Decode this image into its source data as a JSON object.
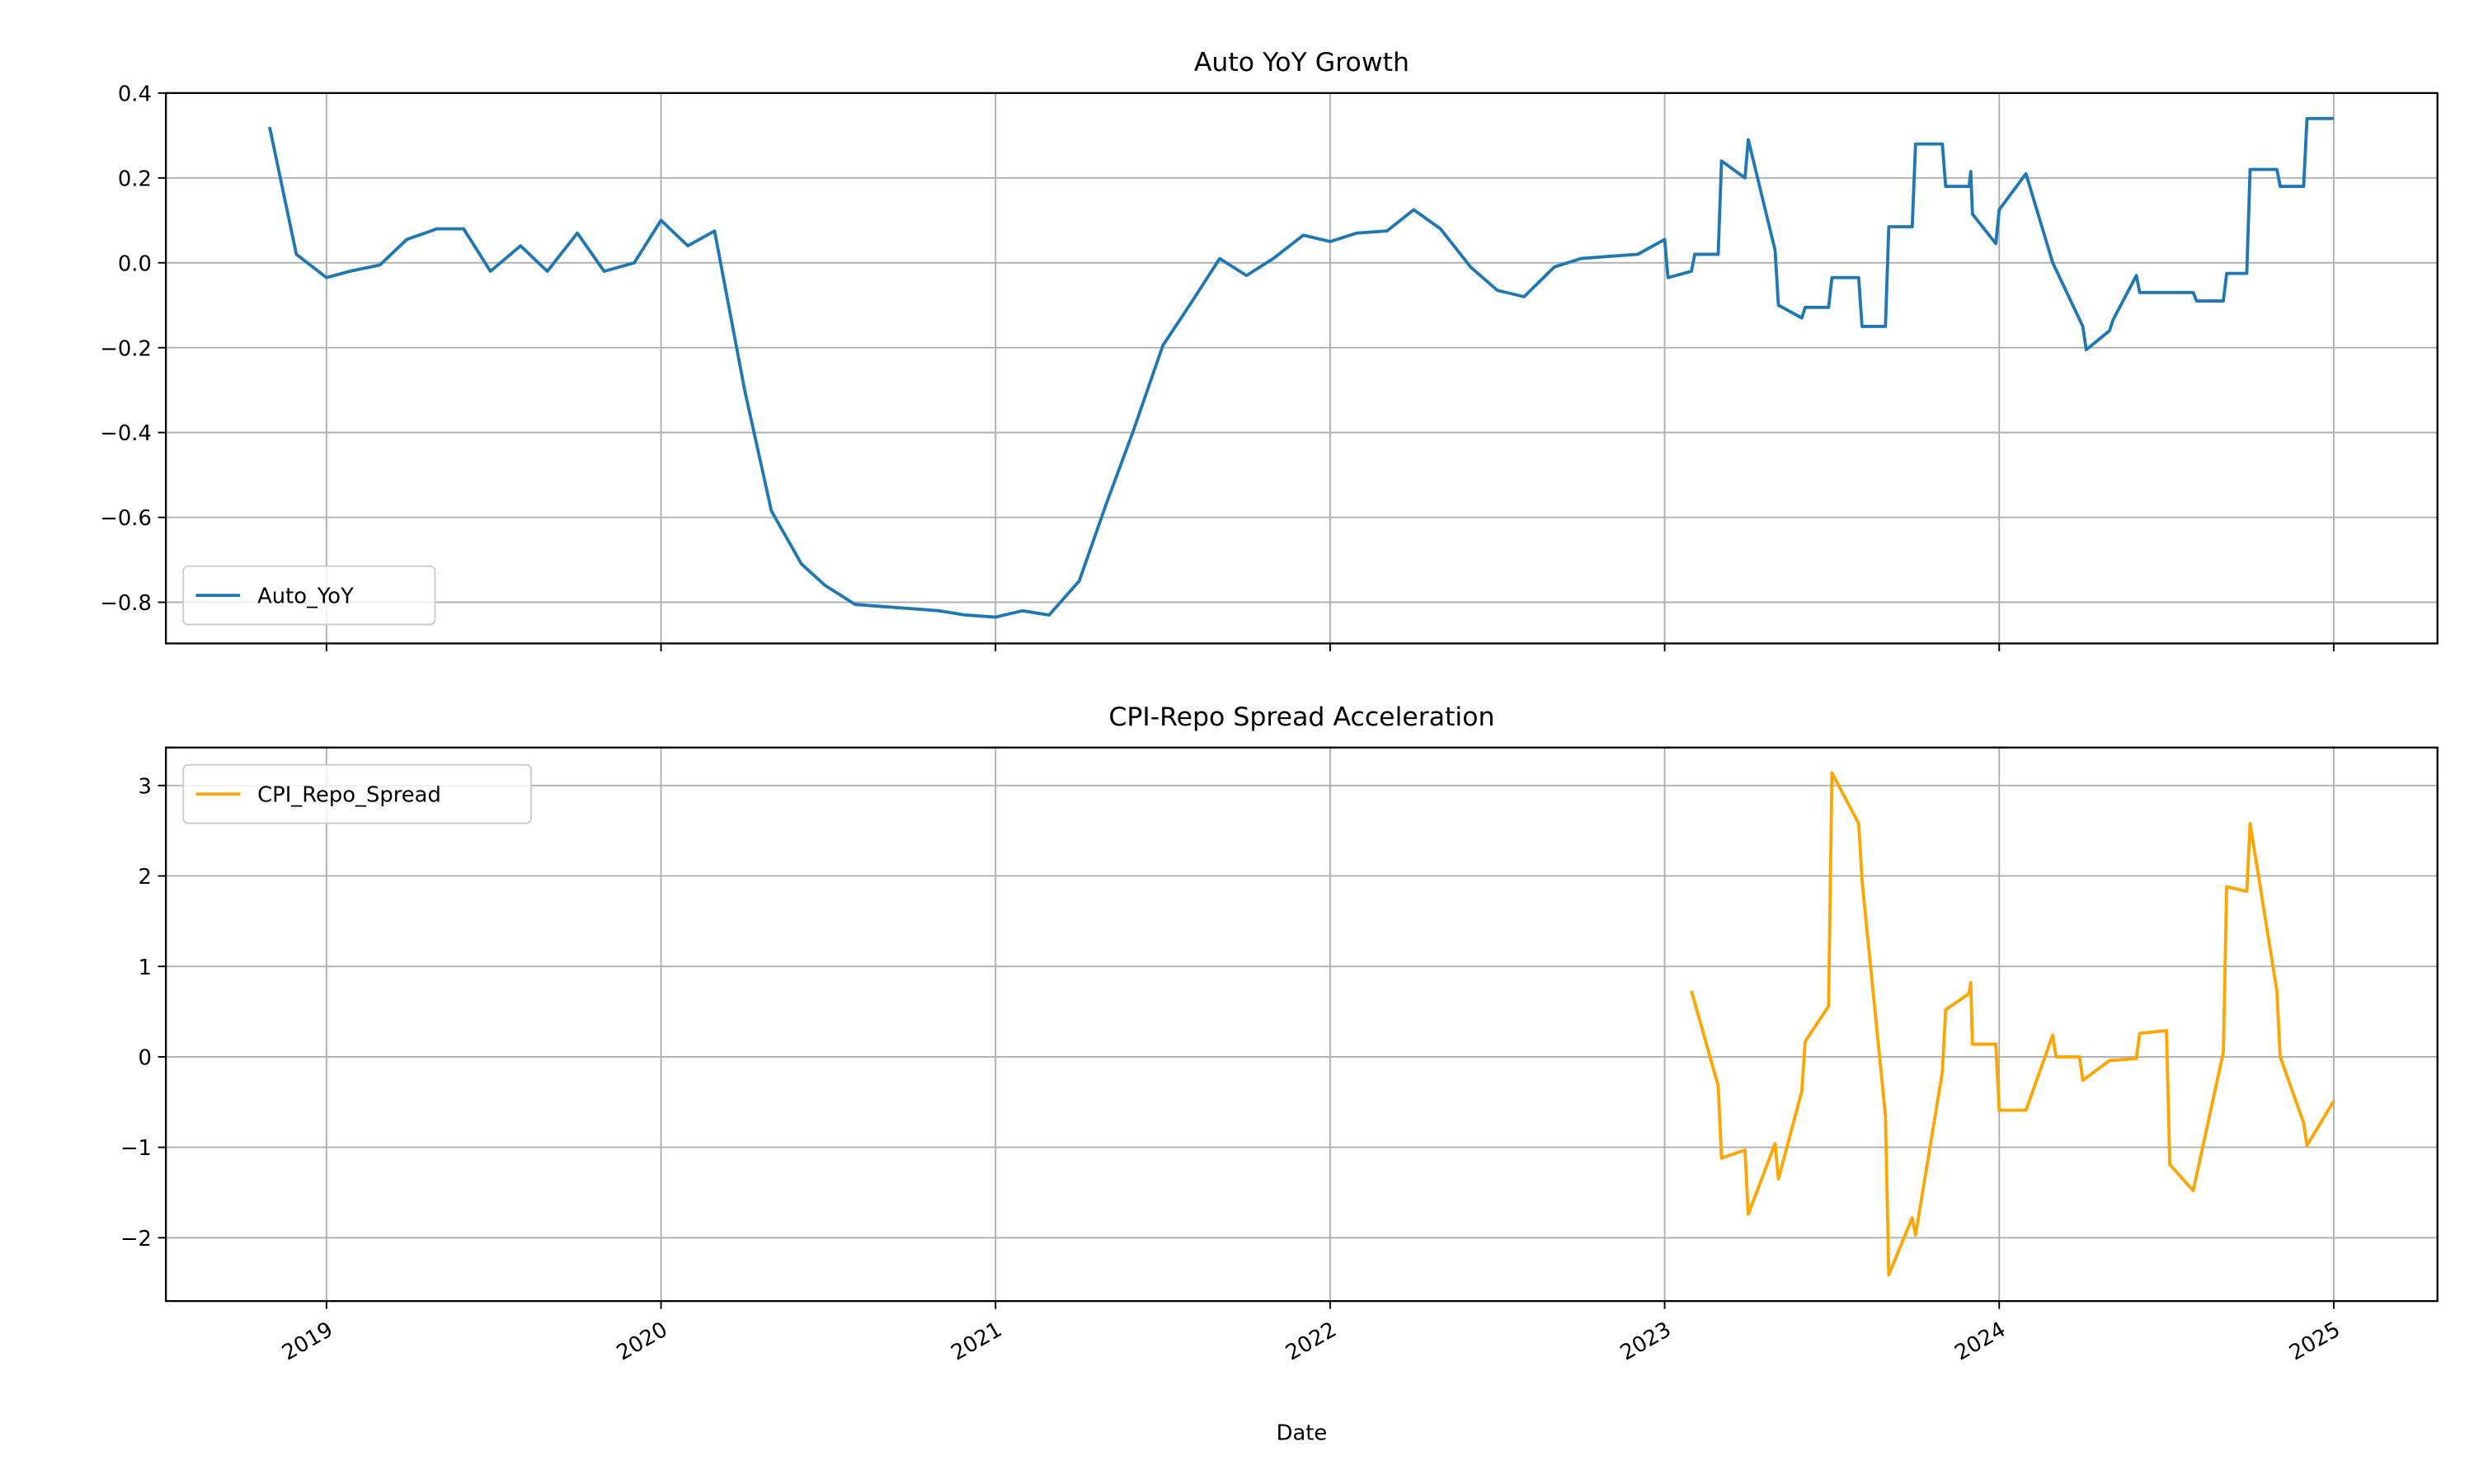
{
  "chart_data": [
    {
      "type": "line",
      "title": "Auto YoY Growth",
      "x": [
        2018.83,
        2018.91,
        2019.0,
        2019.07,
        2019.16,
        2019.24,
        2019.33,
        2019.41,
        2019.49,
        2019.58,
        2019.66,
        2019.75,
        2019.83,
        2019.92,
        2020.0,
        2020.08,
        2020.16,
        2020.25,
        2020.33,
        2020.42,
        2020.49,
        2020.58,
        2020.66,
        2020.75,
        2020.83,
        2020.91,
        2021.0,
        2021.08,
        2021.16,
        2021.25,
        2021.33,
        2021.41,
        2021.5,
        2021.58,
        2021.67,
        2021.75,
        2021.83,
        2021.92,
        2022.0,
        2022.08,
        2022.17,
        2022.25,
        2022.33,
        2022.42,
        2022.5,
        2022.58,
        2022.67,
        2022.75,
        2022.83,
        2022.92,
        2023.0,
        2023.01,
        2023.08,
        2023.09,
        2023.16,
        2023.17,
        2023.24,
        2023.25,
        2023.33,
        2023.34,
        2023.41,
        2023.42,
        2023.49,
        2023.5,
        2023.58,
        2023.59,
        2023.66,
        2023.67,
        2023.74,
        2023.75,
        2023.83,
        2023.84,
        2023.91,
        2023.915,
        2023.92,
        2023.99,
        2024.0,
        2024.08,
        2024.16,
        2024.25,
        2024.26,
        2024.33,
        2024.34,
        2024.41,
        2024.42,
        2024.58,
        2024.59,
        2024.67,
        2024.68,
        2024.74,
        2024.75,
        2024.83,
        2024.84,
        2024.91,
        2024.92,
        2025.0
      ],
      "series": [
        {
          "name": "Auto_YoY",
          "color": "#1f77b4",
          "values": [
            0.32,
            0.02,
            -0.035,
            -0.02,
            -0.005,
            0.055,
            0.08,
            0.08,
            -0.02,
            0.04,
            -0.02,
            0.07,
            -0.02,
            0.0,
            0.1,
            0.04,
            0.075,
            -0.3,
            -0.585,
            -0.71,
            -0.76,
            -0.805,
            -0.81,
            -0.815,
            -0.82,
            -0.83,
            -0.835,
            -0.82,
            -0.83,
            -0.75,
            -0.57,
            -0.4,
            -0.195,
            -0.1,
            0.01,
            -0.03,
            0.01,
            0.065,
            0.05,
            0.07,
            0.075,
            0.125,
            0.08,
            -0.01,
            -0.065,
            -0.08,
            -0.01,
            0.01,
            0.015,
            0.02,
            0.055,
            -0.035,
            -0.02,
            0.02,
            0.02,
            0.24,
            0.2,
            0.29,
            0.03,
            -0.1,
            -0.13,
            -0.105,
            -0.105,
            -0.035,
            -0.035,
            -0.15,
            -0.15,
            0.085,
            0.085,
            0.28,
            0.28,
            0.18,
            0.18,
            0.215,
            0.115,
            0.045,
            0.125,
            0.21,
            0.0,
            -0.15,
            -0.205,
            -0.16,
            -0.135,
            -0.03,
            -0.07,
            -0.07,
            -0.09,
            -0.09,
            -0.025,
            -0.025,
            0.22,
            0.22,
            0.18,
            0.18,
            0.34,
            0.34
          ]
        }
      ],
      "xlim": [
        2018.52,
        2025.31
      ],
      "xticks": [
        2019,
        2020,
        2021,
        2022,
        2023,
        2024,
        2025
      ],
      "ylim": [
        -0.897,
        0.4
      ],
      "yticks": [
        {
          "value": -0.8,
          "label": "−0.8"
        },
        {
          "value": -0.6,
          "label": "−0.6"
        },
        {
          "value": -0.4,
          "label": "−0.4"
        },
        {
          "value": -0.2,
          "label": "−0.2"
        },
        {
          "value": 0.0,
          "label": "0.0"
        },
        0.2,
        0.4
      ],
      "grid": true,
      "legend": "lower-left"
    },
    {
      "type": "line",
      "title": "CPI-Repo Spread Acceleration",
      "xlabel": "Date",
      "x": [
        2023.08,
        2023.16,
        2023.17,
        2023.24,
        2023.25,
        2023.33,
        2023.34,
        2023.41,
        2023.42,
        2023.49,
        2023.5,
        2023.58,
        2023.59,
        2023.66,
        2023.67,
        2023.74,
        2023.75,
        2023.83,
        2023.84,
        2023.91,
        2023.915,
        2023.92,
        2023.99,
        2024.0,
        2024.08,
        2024.16,
        2024.17,
        2024.24,
        2024.25,
        2024.33,
        2024.41,
        2024.42,
        2024.5,
        2024.51,
        2024.58,
        2024.67,
        2024.68,
        2024.74,
        2024.75,
        2024.83,
        2024.84,
        2024.91,
        2024.92,
        2025.0
      ],
      "series": [
        {
          "name": "CPI_Repo_Spread",
          "color": "#ffa500",
          "values": [
            0.73,
            -0.32,
            -1.12,
            -1.03,
            -1.74,
            -0.96,
            -1.35,
            -0.38,
            0.17,
            0.56,
            3.14,
            2.58,
            1.95,
            -0.65,
            -2.41,
            -1.78,
            -1.97,
            -0.17,
            0.52,
            0.7,
            0.82,
            0.14,
            0.14,
            -0.59,
            -0.59,
            0.24,
            0.0,
            0.0,
            -0.26,
            -0.04,
            -0.02,
            0.26,
            0.29,
            -1.19,
            -1.48,
            0.05,
            1.88,
            1.83,
            2.58,
            0.73,
            0.0,
            -0.73,
            -0.98,
            -0.49
          ]
        }
      ],
      "xlim": [
        2018.52,
        2025.31
      ],
      "xticks": [
        2019,
        2020,
        2021,
        2022,
        2023,
        2024,
        2025
      ],
      "ylim": [
        -2.7,
        3.42
      ],
      "yticks": [
        {
          "value": -2,
          "label": "−2"
        },
        {
          "value": -1,
          "label": "−1"
        },
        0,
        1,
        2,
        3
      ],
      "grid": true,
      "legend": "upper-left"
    }
  ]
}
